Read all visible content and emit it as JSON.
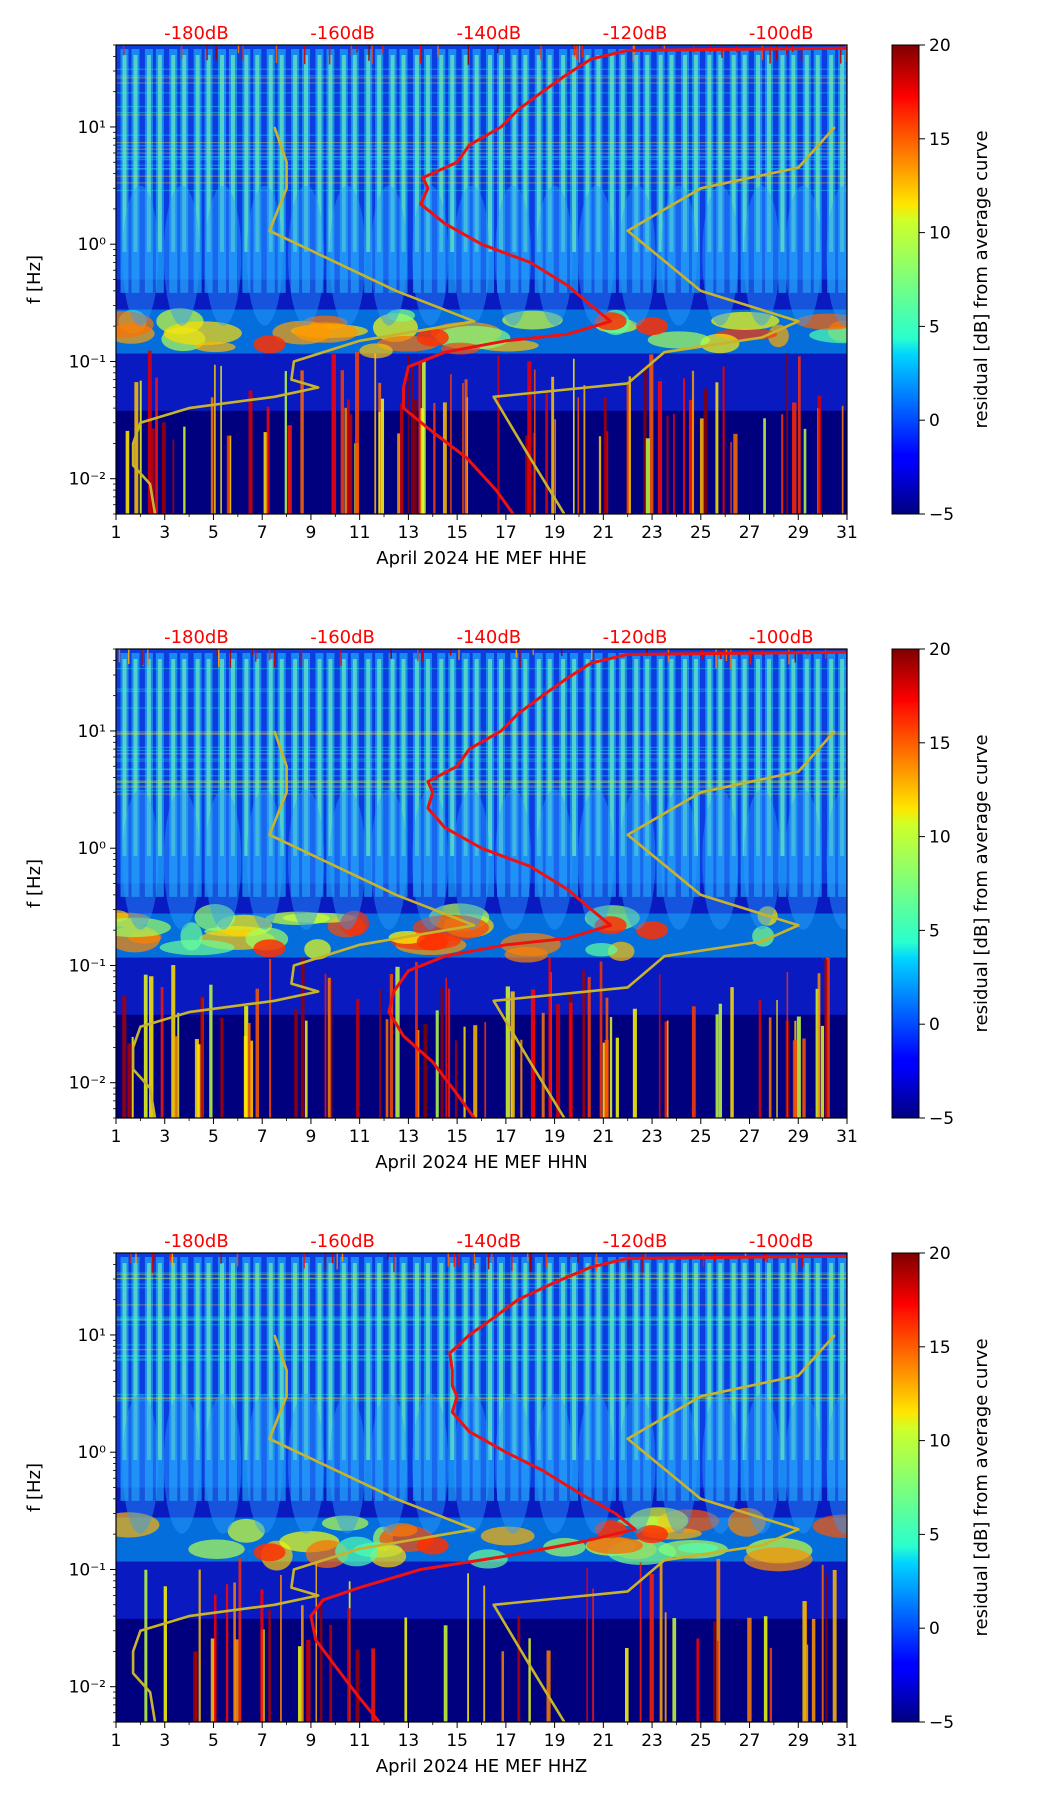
{
  "figure": {
    "top_db_labels": [
      "-180dB",
      "-160dB",
      "-140dB",
      "-120dB",
      "-100dB"
    ],
    "db_label_color": "#ff0000",
    "x_tick_labels": [
      "1",
      "3",
      "5",
      "7",
      "9",
      "11",
      "13",
      "15",
      "17",
      "19",
      "21",
      "23",
      "25",
      "27",
      "29",
      "31"
    ],
    "y_tick_labels": [
      "10⁻²",
      "10⁻¹",
      "10⁰",
      "10¹"
    ],
    "y_label": "f [Hz]",
    "colorbar": {
      "label": "residual [dB] from average curve",
      "ticks": [
        "−5",
        "0",
        "5",
        "10",
        "15",
        "20"
      ],
      "range": [
        -5,
        20
      ]
    }
  },
  "chart_data": [
    {
      "type": "heatmap",
      "title": "",
      "xlabel": "April 2024 HE MEF  HHE",
      "ylabel": "f [Hz]",
      "x_range": [
        1,
        31
      ],
      "y_range_hz": [
        0.005,
        50
      ],
      "y_scale": "log",
      "color_range_db": [
        -5,
        20
      ],
      "db_axis_top": [
        -180,
        -160,
        -140,
        -120,
        -100
      ],
      "series": [
        {
          "name": "average PSD curve",
          "color": "#ee1111",
          "points": [
            [
              17.3,
              0.005
            ],
            [
              16.6,
              0.008
            ],
            [
              15.4,
              0.015
            ],
            [
              14.0,
              0.025
            ],
            [
              12.8,
              0.04
            ],
            [
              12.8,
              0.06
            ],
            [
              13.0,
              0.09
            ],
            [
              14.5,
              0.12
            ],
            [
              17.0,
              0.15
            ],
            [
              19.5,
              0.17
            ],
            [
              21.3,
              0.22
            ],
            [
              20.5,
              0.3
            ],
            [
              19.5,
              0.45
            ],
            [
              18.0,
              0.7
            ],
            [
              16.0,
              1.0
            ],
            [
              14.5,
              1.5
            ],
            [
              13.5,
              2.2
            ],
            [
              13.8,
              3.0
            ],
            [
              13.6,
              3.7
            ],
            [
              15.0,
              5.0
            ],
            [
              15.5,
              7.0
            ],
            [
              16.8,
              10.0
            ],
            [
              17.5,
              14.0
            ],
            [
              18.5,
              20.0
            ],
            [
              19.5,
              28.0
            ],
            [
              20.5,
              38.0
            ],
            [
              22.0,
              45.0
            ],
            [
              31.0,
              47.0
            ]
          ]
        },
        {
          "name": "noise model curve (low)",
          "color": "#c8b42a",
          "points": [
            [
              2.6,
              0.005
            ],
            [
              2.4,
              0.009
            ],
            [
              1.7,
              0.013
            ],
            [
              1.7,
              0.02
            ],
            [
              2.0,
              0.03
            ],
            [
              4.0,
              0.04
            ],
            [
              7.5,
              0.05
            ],
            [
              9.3,
              0.06
            ],
            [
              8.2,
              0.07
            ],
            [
              8.3,
              0.1
            ],
            [
              11.0,
              0.15
            ],
            [
              15.7,
              0.22
            ],
            [
              12.5,
              0.4
            ],
            [
              7.3,
              1.3
            ],
            [
              8.0,
              3.0
            ],
            [
              8.0,
              5.0
            ],
            [
              7.5,
              10.0
            ]
          ]
        },
        {
          "name": "noise model curve (high)",
          "color": "#c8b42a",
          "points": [
            [
              19.4,
              0.005
            ],
            [
              18.0,
              0.015
            ],
            [
              16.5,
              0.05
            ],
            [
              22.0,
              0.065
            ],
            [
              23.5,
              0.12
            ],
            [
              27.5,
              0.16
            ],
            [
              29.0,
              0.22
            ],
            [
              25.0,
              0.4
            ],
            [
              22.0,
              1.3
            ],
            [
              25.0,
              3.0
            ],
            [
              29.0,
              4.5
            ],
            [
              30.5,
              10.0
            ]
          ]
        }
      ]
    },
    {
      "type": "heatmap",
      "title": "",
      "xlabel": "April 2024 HE MEF  HHN",
      "ylabel": "f [Hz]",
      "x_range": [
        1,
        31
      ],
      "y_range_hz": [
        0.005,
        50
      ],
      "y_scale": "log",
      "color_range_db": [
        -5,
        20
      ],
      "db_axis_top": [
        -180,
        -160,
        -140,
        -120,
        -100
      ],
      "series": [
        {
          "name": "average PSD curve",
          "color": "#ee1111",
          "points": [
            [
              15.7,
              0.005
            ],
            [
              15.0,
              0.008
            ],
            [
              14.0,
              0.015
            ],
            [
              12.8,
              0.025
            ],
            [
              12.2,
              0.04
            ],
            [
              12.4,
              0.06
            ],
            [
              13.0,
              0.09
            ],
            [
              14.5,
              0.12
            ],
            [
              17.0,
              0.15
            ],
            [
              19.5,
              0.17
            ],
            [
              21.3,
              0.22
            ],
            [
              20.5,
              0.3
            ],
            [
              19.5,
              0.45
            ],
            [
              18.0,
              0.7
            ],
            [
              16.0,
              1.0
            ],
            [
              14.5,
              1.5
            ],
            [
              13.8,
              2.2
            ],
            [
              14.0,
              3.0
            ],
            [
              13.8,
              3.7
            ],
            [
              15.0,
              5.0
            ],
            [
              15.5,
              7.0
            ],
            [
              16.8,
              10.0
            ],
            [
              17.5,
              14.0
            ],
            [
              18.5,
              20.0
            ],
            [
              19.5,
              28.0
            ],
            [
              20.5,
              38.0
            ],
            [
              22.0,
              45.0
            ],
            [
              31.0,
              47.0
            ]
          ]
        },
        {
          "name": "noise model curve (low)",
          "color": "#c8b42a",
          "points": [
            [
              2.6,
              0.005
            ],
            [
              2.4,
              0.009
            ],
            [
              1.7,
              0.013
            ],
            [
              1.7,
              0.02
            ],
            [
              2.0,
              0.03
            ],
            [
              4.0,
              0.04
            ],
            [
              7.5,
              0.05
            ],
            [
              9.3,
              0.06
            ],
            [
              8.2,
              0.07
            ],
            [
              8.3,
              0.1
            ],
            [
              11.0,
              0.15
            ],
            [
              15.7,
              0.22
            ],
            [
              12.5,
              0.4
            ],
            [
              7.3,
              1.3
            ],
            [
              8.0,
              3.0
            ],
            [
              8.0,
              5.0
            ],
            [
              7.5,
              10.0
            ]
          ]
        },
        {
          "name": "noise model curve (high)",
          "color": "#c8b42a",
          "points": [
            [
              19.4,
              0.005
            ],
            [
              18.0,
              0.015
            ],
            [
              16.5,
              0.05
            ],
            [
              22.0,
              0.065
            ],
            [
              23.5,
              0.12
            ],
            [
              27.5,
              0.16
            ],
            [
              29.0,
              0.22
            ],
            [
              25.0,
              0.4
            ],
            [
              22.0,
              1.3
            ],
            [
              25.0,
              3.0
            ],
            [
              29.0,
              4.5
            ],
            [
              30.5,
              10.0
            ]
          ]
        }
      ]
    },
    {
      "type": "heatmap",
      "title": "",
      "xlabel": "April 2024 HE MEF  HHZ",
      "ylabel": "f [Hz]",
      "x_range": [
        1,
        31
      ],
      "y_range_hz": [
        0.005,
        50
      ],
      "y_scale": "log",
      "color_range_db": [
        -5,
        20
      ],
      "db_axis_top": [
        -180,
        -160,
        -140,
        -120,
        -100
      ],
      "series": [
        {
          "name": "average PSD curve",
          "color": "#ee1111",
          "points": [
            [
              11.8,
              0.005
            ],
            [
              11.0,
              0.008
            ],
            [
              10.0,
              0.015
            ],
            [
              9.2,
              0.025
            ],
            [
              9.0,
              0.04
            ],
            [
              9.5,
              0.055
            ],
            [
              11.0,
              0.07
            ],
            [
              13.5,
              0.1
            ],
            [
              17.0,
              0.13
            ],
            [
              20.0,
              0.17
            ],
            [
              22.3,
              0.22
            ],
            [
              21.5,
              0.3
            ],
            [
              20.0,
              0.45
            ],
            [
              18.5,
              0.7
            ],
            [
              17.0,
              1.0
            ],
            [
              15.5,
              1.5
            ],
            [
              14.8,
              2.2
            ],
            [
              15.0,
              3.0
            ],
            [
              14.8,
              3.7
            ],
            [
              14.8,
              5.0
            ],
            [
              14.7,
              7.0
            ],
            [
              15.5,
              10.0
            ],
            [
              16.5,
              14.0
            ],
            [
              17.5,
              20.0
            ],
            [
              19.0,
              28.0
            ],
            [
              20.5,
              38.0
            ],
            [
              22.0,
              45.0
            ],
            [
              31.0,
              47.0
            ]
          ]
        },
        {
          "name": "noise model curve (low)",
          "color": "#c8b42a",
          "points": [
            [
              2.6,
              0.005
            ],
            [
              2.4,
              0.009
            ],
            [
              1.7,
              0.013
            ],
            [
              1.7,
              0.02
            ],
            [
              2.0,
              0.03
            ],
            [
              4.0,
              0.04
            ],
            [
              7.5,
              0.05
            ],
            [
              9.3,
              0.06
            ],
            [
              8.2,
              0.07
            ],
            [
              8.3,
              0.1
            ],
            [
              11.0,
              0.15
            ],
            [
              15.7,
              0.22
            ],
            [
              12.5,
              0.4
            ],
            [
              7.3,
              1.3
            ],
            [
              8.0,
              3.0
            ],
            [
              8.0,
              5.0
            ],
            [
              7.5,
              10.0
            ]
          ]
        },
        {
          "name": "noise model curve (high)",
          "color": "#c8b42a",
          "points": [
            [
              19.4,
              0.005
            ],
            [
              18.0,
              0.015
            ],
            [
              16.5,
              0.05
            ],
            [
              22.0,
              0.065
            ],
            [
              23.5,
              0.12
            ],
            [
              27.5,
              0.16
            ],
            [
              29.0,
              0.22
            ],
            [
              25.0,
              0.4
            ],
            [
              22.0,
              1.3
            ],
            [
              25.0,
              3.0
            ],
            [
              29.0,
              4.5
            ],
            [
              30.5,
              10.0
            ]
          ]
        }
      ]
    }
  ]
}
